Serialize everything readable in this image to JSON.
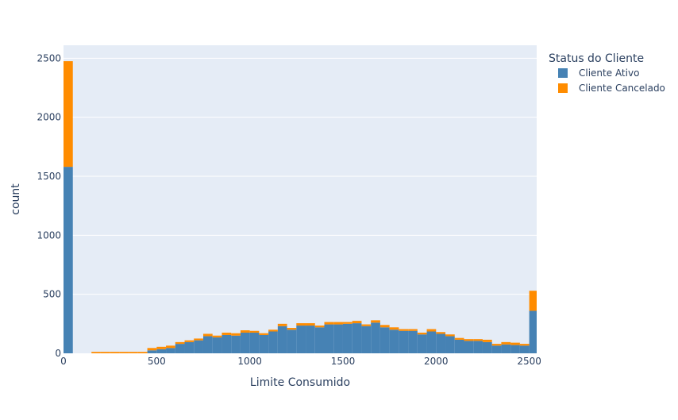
{
  "chart_data": {
    "type": "bar",
    "barmode": "stack",
    "xlabel": "Limite Consumido",
    "ylabel": "count",
    "xlim": [
      0,
      2540
    ],
    "ylim": [
      0,
      2610
    ],
    "bin_width": 50,
    "x_ticks": [
      0,
      500,
      1000,
      1500,
      2000,
      2500
    ],
    "y_ticks": [
      0,
      500,
      1000,
      1500,
      2000,
      2500
    ],
    "grid": true,
    "plot_bgcolor": "#E5ECF6",
    "legend": {
      "title": "Status do Cliente",
      "placement": "right"
    },
    "bin_starts": [
      0,
      150,
      200,
      250,
      300,
      350,
      400,
      450,
      500,
      550,
      600,
      650,
      700,
      750,
      800,
      850,
      900,
      950,
      1000,
      1050,
      1100,
      1150,
      1200,
      1250,
      1300,
      1350,
      1400,
      1450,
      1500,
      1550,
      1600,
      1650,
      1700,
      1750,
      1800,
      1850,
      1900,
      1950,
      2000,
      2050,
      2100,
      2150,
      2200,
      2250,
      2300,
      2350,
      2400,
      2450,
      2500
    ],
    "series": [
      {
        "name": "Cliente Ativo",
        "color": "#4682B4",
        "values": [
          1580,
          0,
          0,
          0,
          0,
          0,
          0,
          25,
          35,
          45,
          80,
          95,
          110,
          145,
          135,
          155,
          150,
          175,
          175,
          155,
          185,
          230,
          200,
          235,
          235,
          220,
          245,
          245,
          250,
          255,
          230,
          260,
          220,
          200,
          190,
          190,
          160,
          185,
          165,
          145,
          115,
          105,
          105,
          95,
          65,
          75,
          70,
          65,
          360
        ]
      },
      {
        "name": "Cliente Cancelado",
        "color": "#FF8C00",
        "values": [
          895,
          12,
          12,
          12,
          12,
          12,
          12,
          20,
          20,
          20,
          15,
          15,
          15,
          20,
          15,
          20,
          20,
          20,
          15,
          15,
          15,
          20,
          15,
          20,
          20,
          15,
          20,
          20,
          15,
          20,
          15,
          20,
          20,
          20,
          15,
          15,
          15,
          20,
          15,
          15,
          15,
          15,
          15,
          20,
          15,
          20,
          20,
          15,
          170
        ]
      }
    ]
  }
}
